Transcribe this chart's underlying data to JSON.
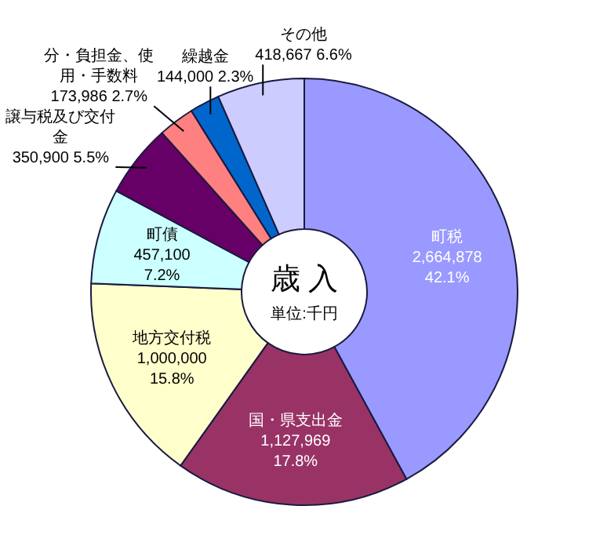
{
  "chart_data": {
    "type": "donut",
    "title": "歳 入",
    "annotations": [
      "単位:千円"
    ],
    "categories": [
      "町税",
      "国・県支出金",
      "地方交付税",
      "町債",
      "譲与税及び交付金",
      "分・負担金、使用・手数料",
      "繰越金",
      "その他"
    ],
    "values": [
      2664878,
      1127969,
      1000000,
      457100,
      350900,
      173986,
      144000,
      418667
    ],
    "colors": [
      "#9999ff",
      "#993366",
      "#ffffcc",
      "#ccffff",
      "#660066",
      "#ff8080",
      "#0066cc",
      "#ccccff"
    ],
    "value_labels": [
      "2,664,878 42.1%",
      "1,127,969 17.8%",
      "1,000,000 15.8%",
      "457,100 7.2%",
      "350,900 5.5%",
      "173,986 2.7%",
      "144,000 2.3%",
      "418,667 6.6%"
    ]
  }
}
